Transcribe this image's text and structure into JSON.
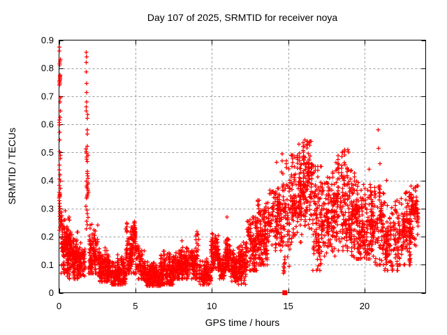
{
  "chart_data": {
    "type": "scatter",
    "title": "Day 107 of 2025, SRMTID for receiver noya",
    "xlabel": "GPS time / hours",
    "ylabel": "SRMTID / TECUs",
    "xlim": [
      0,
      24
    ],
    "ylim": [
      0,
      0.9
    ],
    "xticks": [
      0,
      5,
      10,
      15,
      20
    ],
    "yticks": [
      0,
      0.1,
      0.2,
      0.3,
      0.4,
      0.5,
      0.6,
      0.7,
      0.8,
      0.9
    ],
    "grid": true,
    "legend": "none",
    "marker": "plus",
    "marker_color": "#ff0000",
    "axis_color": "#000000",
    "grid_color": "#9b9b9b",
    "background": "#ffffff",
    "special_markers": [
      {
        "shape": "filled-square",
        "x": 14.78,
        "y": 0.0
      }
    ],
    "spike_columns": [
      {
        "x": 0.06,
        "jitter": 0.05,
        "values": [
          0.875,
          0.862,
          0.832,
          0.825,
          0.818,
          0.812,
          0.776,
          0.772,
          0.768,
          0.763,
          0.758,
          0.754,
          0.75,
          0.745,
          0.74,
          0.695,
          0.68,
          0.648,
          0.625,
          0.615,
          0.607,
          0.598,
          0.572,
          0.545,
          0.502,
          0.49,
          0.478,
          0.455,
          0.437,
          0.42,
          0.405,
          0.398,
          0.383,
          0.372,
          0.358,
          0.352,
          0.349,
          0.346,
          0.343,
          0.338,
          0.328,
          0.318,
          0.308,
          0.3,
          0.29,
          0.282,
          0.272,
          0.262,
          0.252,
          0.242,
          0.232,
          0.222
        ]
      },
      {
        "x": 1.84,
        "jitter": 0.08,
        "values": [
          0.857,
          0.84,
          0.82,
          0.787,
          0.746,
          0.713,
          0.68,
          0.662,
          0.648,
          0.635,
          0.622,
          0.58,
          0.565,
          0.522,
          0.512,
          0.503,
          0.497,
          0.49,
          0.483,
          0.476,
          0.468,
          0.432,
          0.425,
          0.417,
          0.408,
          0.398,
          0.392,
          0.386,
          0.38,
          0.375,
          0.37,
          0.364,
          0.358,
          0.352,
          0.347,
          0.342,
          0.337,
          0.308,
          0.295,
          0.282,
          0.268,
          0.255,
          0.242,
          0.228
        ]
      }
    ],
    "clusters_format": "[x_start_hour, x_end_hour, y_min, y_max, y_center, n_points]",
    "clusters": [
      [
        0.12,
        0.75,
        0.07,
        0.31,
        0.17,
        100
      ],
      [
        0.55,
        1.25,
        0.05,
        0.23,
        0.13,
        110
      ],
      [
        1.25,
        1.72,
        0.06,
        0.19,
        0.11,
        70
      ],
      [
        1.95,
        2.55,
        0.07,
        0.28,
        0.15,
        85
      ],
      [
        2.55,
        3.35,
        0.04,
        0.16,
        0.09,
        110
      ],
      [
        3.35,
        4.35,
        0.03,
        0.14,
        0.07,
        130
      ],
      [
        4.35,
        5.15,
        0.07,
        0.27,
        0.14,
        100
      ],
      [
        4.75,
        5.0,
        0.19,
        0.26,
        0.225,
        22
      ],
      [
        5.15,
        5.65,
        0.05,
        0.17,
        0.09,
        60
      ],
      [
        5.65,
        6.65,
        0.025,
        0.11,
        0.06,
        150
      ],
      [
        6.65,
        7.65,
        0.03,
        0.15,
        0.08,
        130
      ],
      [
        7.65,
        8.35,
        0.05,
        0.18,
        0.1,
        100
      ],
      [
        8.35,
        9.05,
        0.05,
        0.16,
        0.1,
        90
      ],
      [
        8.95,
        9.15,
        0.13,
        0.22,
        0.17,
        14
      ],
      [
        9.15,
        9.95,
        0.03,
        0.12,
        0.065,
        100
      ],
      [
        9.95,
        10.45,
        0.08,
        0.22,
        0.14,
        70
      ],
      [
        10.45,
        10.85,
        0.05,
        0.13,
        0.09,
        50
      ],
      [
        10.85,
        11.25,
        0.08,
        0.21,
        0.13,
        60
      ],
      [
        11.25,
        11.7,
        0.04,
        0.15,
        0.09,
        60
      ],
      [
        11.7,
        12.25,
        0.03,
        0.19,
        0.1,
        80
      ],
      [
        12.25,
        12.95,
        0.08,
        0.3,
        0.17,
        90
      ],
      [
        12.95,
        13.65,
        0.1,
        0.33,
        0.2,
        100
      ],
      [
        13.65,
        14.55,
        0.15,
        0.4,
        0.27,
        110
      ],
      [
        14.55,
        15.15,
        0.07,
        0.47,
        0.27,
        70
      ],
      [
        15.15,
        15.95,
        0.18,
        0.51,
        0.33,
        110
      ],
      [
        15.95,
        16.6,
        0.2,
        0.54,
        0.38,
        110
      ],
      [
        16.6,
        17.3,
        0.08,
        0.45,
        0.25,
        100
      ],
      [
        17.3,
        18.1,
        0.13,
        0.43,
        0.27,
        110
      ],
      [
        18.1,
        19.0,
        0.15,
        0.51,
        0.3,
        110
      ],
      [
        19.0,
        19.6,
        0.12,
        0.45,
        0.27,
        90
      ],
      [
        19.6,
        20.5,
        0.12,
        0.39,
        0.24,
        110
      ],
      [
        20.5,
        21.3,
        0.1,
        0.38,
        0.23,
        100
      ],
      [
        21.3,
        22.2,
        0.08,
        0.33,
        0.19,
        100
      ],
      [
        22.2,
        23.0,
        0.1,
        0.36,
        0.22,
        100
      ],
      [
        23.0,
        23.5,
        0.15,
        0.38,
        0.28,
        60
      ]
    ],
    "extra_points": [
      [
        14.6,
        0.495
      ],
      [
        14.25,
        0.465
      ],
      [
        16.1,
        0.545
      ],
      [
        16.35,
        0.535
      ],
      [
        15.7,
        0.53
      ],
      [
        18.55,
        0.5
      ],
      [
        18.9,
        0.51
      ],
      [
        20.3,
        0.44
      ],
      [
        20.9,
        0.58
      ],
      [
        20.92,
        0.515
      ],
      [
        21.0,
        0.46
      ],
      [
        21.45,
        0.4
      ],
      [
        11.0,
        0.27
      ],
      [
        23.2,
        0.37
      ],
      [
        8.05,
        0.185
      ]
    ]
  }
}
